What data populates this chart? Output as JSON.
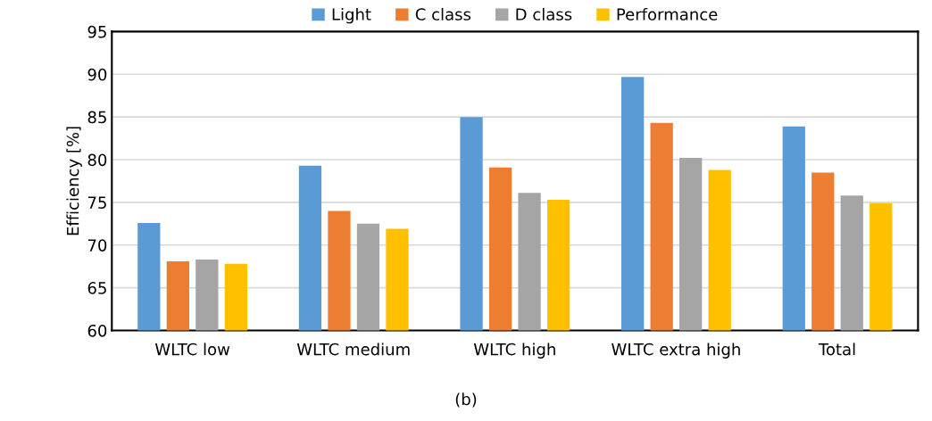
{
  "chart_data": {
    "type": "bar",
    "ylabel": "Efficiency [%]",
    "categories": [
      "WLTC low",
      "WLTC medium",
      "WLTC high",
      "WLTC extra high",
      "Total"
    ],
    "series": [
      {
        "name": "Light",
        "color": "#5b9bd5",
        "values": [
          72.6,
          79.3,
          85.0,
          89.7,
          83.9
        ]
      },
      {
        "name": "C class",
        "color": "#ed7d31",
        "values": [
          68.1,
          74.0,
          79.1,
          84.3,
          78.5
        ]
      },
      {
        "name": "D class",
        "color": "#a5a5a5",
        "values": [
          68.3,
          72.5,
          76.1,
          80.2,
          75.8
        ]
      },
      {
        "name": "Performance",
        "color": "#ffc000",
        "values": [
          67.8,
          71.9,
          75.3,
          78.8,
          74.9
        ]
      }
    ],
    "ylim": [
      60,
      95
    ],
    "yticks": [
      60,
      65,
      70,
      75,
      80,
      85,
      90,
      95
    ],
    "grid": "y",
    "legend": "top",
    "annotations": [
      "(b)"
    ]
  }
}
